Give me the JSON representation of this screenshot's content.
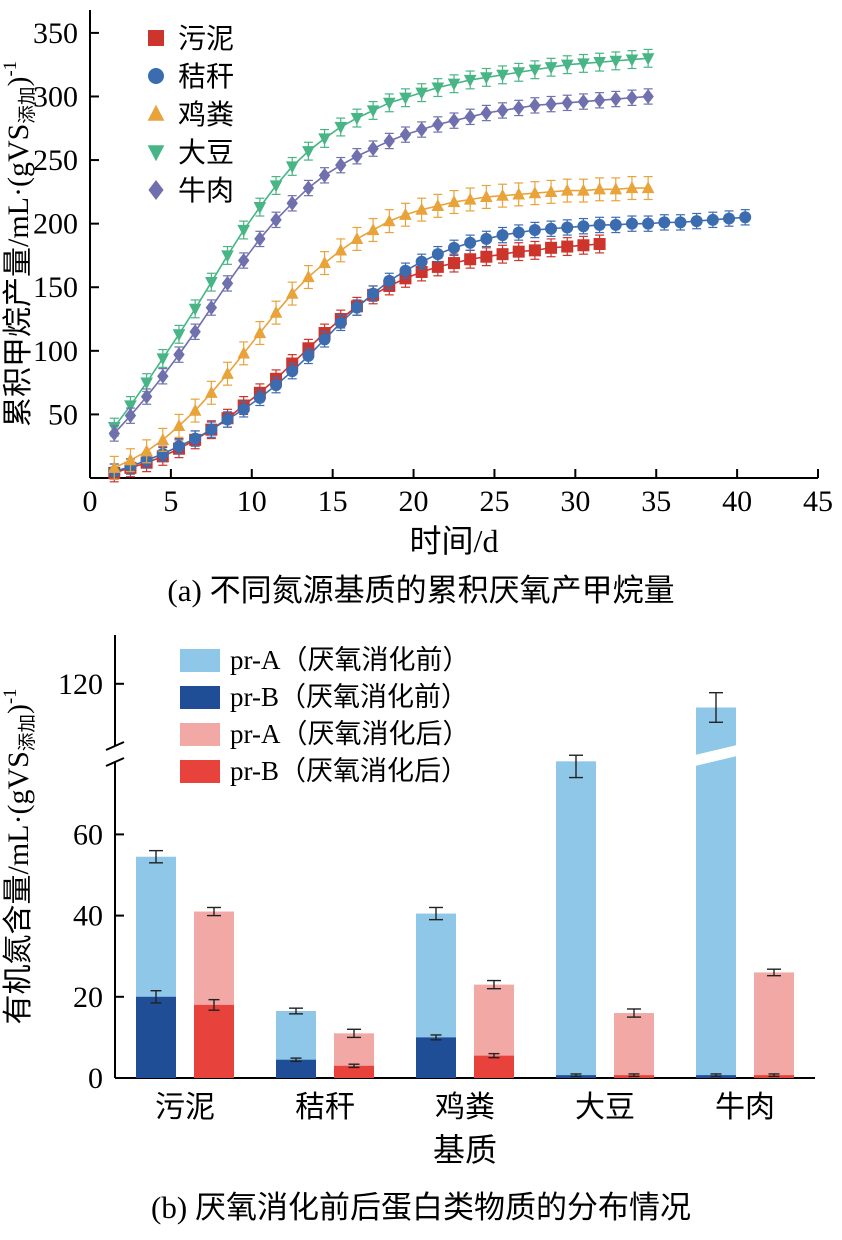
{
  "captions": {
    "a": "(a) 不同氮源基质的累积厌氧产甲烷量",
    "b": "(b) 厌氧消化前后蛋白类物质的分布情况"
  },
  "chart_data": [
    {
      "id": "chartA",
      "type": "line",
      "xlabel": "时间/d",
      "ylabel_parts": [
        {
          "t": "累积甲烷产量/mL·(gVS"
        },
        {
          "t": "添加",
          "type": "sub"
        },
        {
          "t": ")"
        },
        {
          "t": "-1",
          "type": "sup"
        }
      ],
      "xlim": [
        0,
        45
      ],
      "ylim": [
        0,
        368
      ],
      "xticks": [
        0,
        5,
        10,
        15,
        20,
        25,
        30,
        35,
        40,
        45
      ],
      "yticks": [
        50,
        100,
        150,
        200,
        250,
        300,
        350
      ],
      "legend_position": "top-left",
      "series": [
        {
          "name": "污泥",
          "marker": "square",
          "color": "#cc342c",
          "err": 7,
          "x": [
            1.5,
            2.5,
            3.5,
            4.5,
            5.5,
            6.5,
            7.5,
            8.5,
            9.5,
            10.5,
            11.5,
            12.5,
            13.5,
            14.5,
            15.5,
            16.5,
            17.5,
            18.5,
            19.5,
            20.5,
            21.5,
            22.5,
            23.5,
            24.5,
            25.5,
            26.5,
            27.5,
            28.5,
            29.5,
            30.5,
            31.5
          ],
          "y": [
            4,
            8,
            12,
            17,
            23,
            30,
            38,
            47,
            57,
            67,
            78,
            90,
            102,
            114,
            125,
            135,
            144,
            151,
            157,
            162,
            166,
            169,
            172,
            174,
            176,
            178,
            179,
            181,
            182,
            183,
            184
          ]
        },
        {
          "name": "秸秆",
          "marker": "circle",
          "color": "#3c6cb0",
          "err": 6,
          "x": [
            1.5,
            2.5,
            3.5,
            4.5,
            5.5,
            6.5,
            7.5,
            8.5,
            9.5,
            10.5,
            11.5,
            12.5,
            13.5,
            14.5,
            15.5,
            16.5,
            17.5,
            18.5,
            19.5,
            20.5,
            21.5,
            22.5,
            23.5,
            24.5,
            25.5,
            26.5,
            27.5,
            28.5,
            29.5,
            30.5,
            31.5,
            32.5,
            33.5,
            34.5,
            35.5,
            36.5,
            37.5,
            38.5,
            39.5,
            40.5
          ],
          "y": [
            5,
            9,
            14,
            19,
            25,
            31,
            38,
            46,
            54,
            63,
            73,
            84,
            96,
            109,
            122,
            134,
            145,
            155,
            163,
            170,
            176,
            181,
            185,
            188,
            191,
            193,
            195,
            196,
            197,
            198,
            199,
            199,
            200,
            200,
            201,
            201,
            202,
            203,
            204,
            205
          ]
        },
        {
          "name": "鸡粪",
          "marker": "triangle-up",
          "color": "#e8a33b",
          "err": 9,
          "x": [
            1.5,
            2.5,
            3.5,
            4.5,
            5.5,
            6.5,
            7.5,
            8.5,
            9.5,
            10.5,
            11.5,
            12.5,
            13.5,
            14.5,
            15.5,
            16.5,
            17.5,
            18.5,
            19.5,
            20.5,
            21.5,
            22.5,
            23.5,
            24.5,
            25.5,
            26.5,
            27.5,
            28.5,
            29.5,
            30.5,
            31.5,
            32.5,
            33.5,
            34.5
          ],
          "y": [
            8,
            14,
            21,
            30,
            41,
            53,
            67,
            82,
            98,
            114,
            130,
            145,
            158,
            169,
            179,
            188,
            195,
            202,
            207,
            211,
            214,
            217,
            219,
            221,
            222,
            223,
            224,
            225,
            226,
            226,
            227,
            227,
            228,
            228
          ]
        },
        {
          "name": "大豆",
          "marker": "triangle-down",
          "color": "#47b585",
          "err": 7,
          "x": [
            1.5,
            2.5,
            3.5,
            4.5,
            5.5,
            6.5,
            7.5,
            8.5,
            9.5,
            10.5,
            11.5,
            12.5,
            13.5,
            14.5,
            15.5,
            16.5,
            17.5,
            18.5,
            19.5,
            20.5,
            21.5,
            22.5,
            23.5,
            24.5,
            25.5,
            26.5,
            27.5,
            28.5,
            29.5,
            30.5,
            31.5,
            32.5,
            33.5,
            34.5
          ],
          "y": [
            40,
            57,
            75,
            94,
            113,
            133,
            154,
            175,
            195,
            213,
            230,
            245,
            257,
            267,
            276,
            283,
            289,
            295,
            299,
            303,
            307,
            310,
            313,
            315,
            317,
            319,
            321,
            323,
            325,
            326,
            327,
            328,
            329,
            330
          ]
        },
        {
          "name": "牛肉",
          "marker": "diamond",
          "color": "#6f70ad",
          "err": 6,
          "x": [
            1.5,
            2.5,
            3.5,
            4.5,
            5.5,
            6.5,
            7.5,
            8.5,
            9.5,
            10.5,
            11.5,
            12.5,
            13.5,
            14.5,
            15.5,
            16.5,
            17.5,
            18.5,
            19.5,
            20.5,
            21.5,
            22.5,
            23.5,
            24.5,
            25.5,
            26.5,
            27.5,
            28.5,
            29.5,
            30.5,
            31.5,
            32.5,
            33.5,
            34.5
          ],
          "y": [
            35,
            49,
            64,
            80,
            97,
            115,
            134,
            153,
            171,
            188,
            203,
            216,
            228,
            238,
            246,
            253,
            259,
            265,
            270,
            274,
            278,
            281,
            284,
            287,
            289,
            291,
            293,
            294,
            295,
            296,
            297,
            298,
            299,
            300
          ]
        }
      ]
    },
    {
      "id": "chartB",
      "type": "bar",
      "xlabel": "基质",
      "ylabel_parts": [
        {
          "t": "有机氮含量/mL·(gVS"
        },
        {
          "t": "添加",
          "type": "sub"
        },
        {
          "t": ")"
        },
        {
          "t": "-1",
          "type": "sup"
        }
      ],
      "categories": [
        "污泥",
        "秸秆",
        "鸡粪",
        "大豆",
        "牛肉"
      ],
      "yticks_below": [
        0,
        20,
        40,
        60
      ],
      "yticks_above": [
        120
      ],
      "axis_break": {
        "hidden_from": 79,
        "hidden_to": 100
      },
      "legend": [
        {
          "label": "pr-A（厌氧消化前）",
          "color": "#8ec7e8"
        },
        {
          "label": "pr-B（厌氧消化前）",
          "color": "#1f4e96"
        },
        {
          "label": "pr-A（厌氧消化后）",
          "color": "#f2a8a4"
        },
        {
          "label": "pr-B（厌氧消化后）",
          "color": "#e8423c"
        }
      ],
      "colors": {
        "preA": "#8ec7e8",
        "preB": "#1f4e96",
        "postA": "#f2a8a4",
        "postB": "#e8423c",
        "error": "#222222"
      },
      "pre": {
        "total": [
          54.5,
          16.5,
          40.5,
          78,
          112
        ],
        "prB": [
          20,
          4.5,
          10,
          0.7,
          0.7
        ],
        "total_err": [
          1.5,
          0.7,
          1.5,
          4,
          5
        ],
        "prB_err": [
          1.5,
          0.4,
          0.6,
          0.3,
          0.3
        ]
      },
      "post": {
        "total": [
          41,
          11,
          23,
          16,
          26
        ],
        "prB": [
          18,
          3,
          5.5,
          0.7,
          0.7
        ],
        "total_err": [
          1,
          1,
          1,
          1,
          0.8
        ],
        "prB_err": [
          1.3,
          0.4,
          0.5,
          0.3,
          0.3
        ]
      }
    }
  ]
}
